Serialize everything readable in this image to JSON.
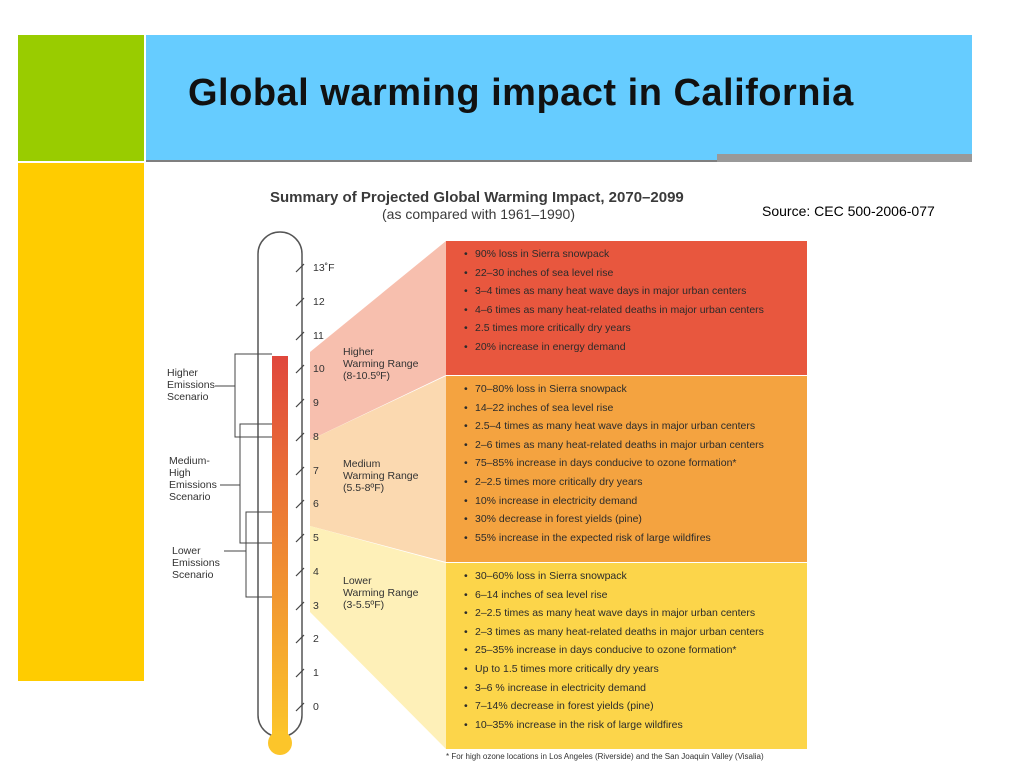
{
  "slide": {
    "title": "Global warming impact in California",
    "source": "Source: CEC 500-2006-077",
    "colors": {
      "green": "#99cc00",
      "blue": "#66ccff",
      "yellow": "#ffcc00",
      "rule": "#999999"
    }
  },
  "figure": {
    "title": "Summary of Projected Global Warming Impact, 2070–2099",
    "subtitle": "(as compared with 1961–1990)",
    "thermometer": {
      "ticks": [
        "13˚F",
        "12",
        "11",
        "10",
        "9",
        "8",
        "7",
        "6",
        "5",
        "4",
        "3",
        "2",
        "1",
        "0"
      ],
      "fill_color_top": "#e0473c",
      "fill_color_bottom": "#fcc52a",
      "fill_top_value_f": 10.5
    },
    "scenarios": [
      {
        "label": "Higher\nEmissions\nScenario"
      },
      {
        "label": "Medium-\nHigh\nEmissions\nScenario"
      },
      {
        "label": "Lower\nEmissions\nScenario"
      }
    ],
    "ranges": [
      {
        "label": "Higher\nWarming Range\n(8-10.5ºF)",
        "color": "#e8573e",
        "wedge_color": "#f7bfae",
        "items": [
          "90% loss in Sierra snowpack",
          "22–30 inches of sea level rise",
          "3–4 times as many heat wave days in major urban centers",
          "4–6 times as many heat-related deaths in major urban centers",
          "2.5 times more critically dry years",
          "20% increase in energy demand"
        ]
      },
      {
        "label": "Medium\nWarming Range\n(5.5-8ºF)",
        "color": "#f4a340",
        "wedge_color": "#fbd9b0",
        "items": [
          "70–80% loss in Sierra snowpack",
          "14–22 inches of sea level rise",
          "2.5–4 times as many heat wave days in major urban centers",
          "2–6 times as many heat-related deaths in major urban centers",
          "75–85% increase in days conducive to ozone formation*",
          "2–2.5 times more critically dry years",
          "10% increase in electricity demand",
          "30% decrease in forest yields (pine)",
          "55% increase in the expected risk of large wildfires"
        ]
      },
      {
        "label": "Lower\nWarming Range\n(3-5.5ºF)",
        "color": "#fcd54a",
        "wedge_color": "#fef0b8",
        "items": [
          "30–60% loss in Sierra snowpack",
          "6–14 inches of sea level rise",
          "2–2.5 times as many heat wave days in major urban centers",
          "2–3 times as many heat-related deaths in major urban centers",
          "25–35% increase in days conducive to ozone formation*",
          "Up to 1.5 times more critically dry years",
          "3–6 % increase in electricity demand",
          "7–14% decrease in forest yields (pine)",
          "10–35% increase in the risk of large wildfires"
        ]
      }
    ],
    "footnote": "* For high ozone locations in Los Angeles (Riverside) and the San Joaquin Valley (Visalia)"
  }
}
